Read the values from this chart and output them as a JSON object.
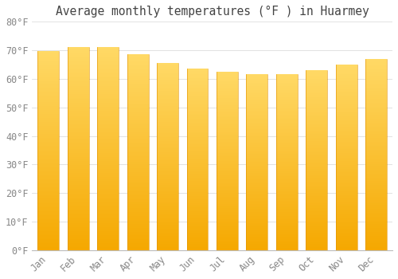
{
  "title": "Average monthly temperatures (°F ) in Huarmey",
  "months": [
    "Jan",
    "Feb",
    "Mar",
    "Apr",
    "May",
    "Jun",
    "Jul",
    "Aug",
    "Sep",
    "Oct",
    "Nov",
    "Dec"
  ],
  "values": [
    69.8,
    71.1,
    71.1,
    68.5,
    65.5,
    63.5,
    62.6,
    61.7,
    61.7,
    63.1,
    64.9,
    67.1
  ],
  "bar_color_bottom": "#F5A800",
  "bar_color_top": "#FFD966",
  "background_color": "#FFFFFF",
  "grid_color": "#DDDDDD",
  "ylim": [
    0,
    80
  ],
  "yticks": [
    0,
    10,
    20,
    30,
    40,
    50,
    60,
    70,
    80
  ],
  "title_fontsize": 10.5,
  "tick_fontsize": 8.5,
  "tick_font_color": "#888888",
  "bar_width": 0.72
}
